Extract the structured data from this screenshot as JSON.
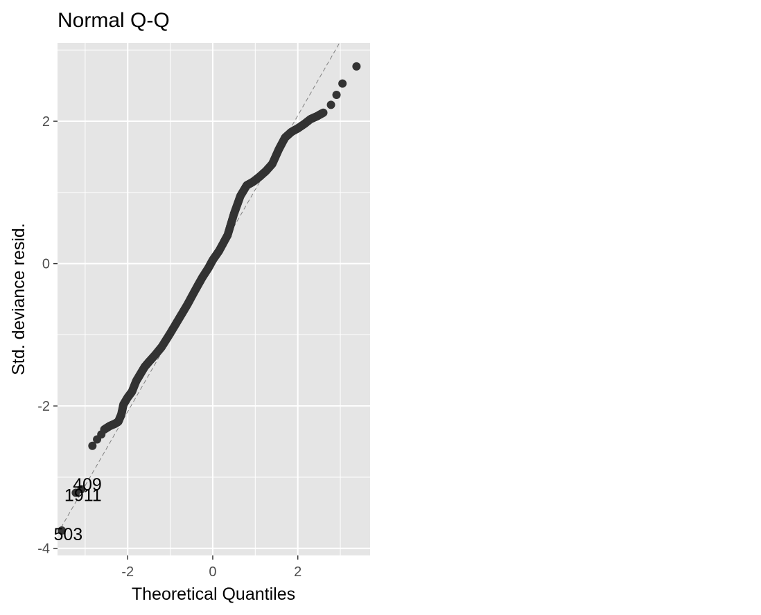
{
  "chart_data": {
    "type": "scatter",
    "title": "Normal Q-Q",
    "xlabel": "Theoretical Quantiles",
    "ylabel": "Std. deviance resid.",
    "xlim": [
      -3.65,
      3.7
    ],
    "ylim": [
      -4.1,
      3.1
    ],
    "x_ticks": [
      -2,
      0,
      2
    ],
    "x_tick_labels": [
      "-2",
      "0",
      "2"
    ],
    "y_ticks": [
      -4,
      -2,
      0,
      2
    ],
    "y_tick_labels": [
      "-4",
      "-2",
      "0",
      "2"
    ],
    "grid": true,
    "panel_background": "#e5e5e5",
    "point_color": "#333333",
    "reference_line": {
      "slope": 1.04,
      "intercept": 0.0,
      "style": "dashed",
      "color": "#808080"
    },
    "series": [
      {
        "points": [
          {
            "x": 3.38,
            "y": 2.77
          },
          {
            "x": 3.05,
            "y": 2.53
          },
          {
            "x": 2.91,
            "y": 2.37
          },
          {
            "x": 2.78,
            "y": 2.23
          },
          {
            "x": -2.83,
            "y": -2.56
          },
          {
            "x": -2.72,
            "y": -2.47
          },
          {
            "x": -2.62,
            "y": -2.4
          },
          {
            "x": -3.09,
            "y": -3.17
          },
          {
            "x": -3.22,
            "y": -3.22
          },
          {
            "x": -3.55,
            "y": -3.75
          }
        ],
        "curve": [
          [
            -2.55,
            -2.33
          ],
          [
            -2.42,
            -2.28
          ],
          [
            -2.3,
            -2.25
          ],
          [
            -2.22,
            -2.22
          ],
          [
            -2.15,
            -2.12
          ],
          [
            -2.1,
            -1.98
          ],
          [
            -2.0,
            -1.88
          ],
          [
            -1.9,
            -1.8
          ],
          [
            -1.8,
            -1.65
          ],
          [
            -1.7,
            -1.55
          ],
          [
            -1.6,
            -1.45
          ],
          [
            -1.5,
            -1.38
          ],
          [
            -1.35,
            -1.28
          ],
          [
            -1.2,
            -1.17
          ],
          [
            -1.0,
            -0.98
          ],
          [
            -0.8,
            -0.78
          ],
          [
            -0.6,
            -0.58
          ],
          [
            -0.4,
            -0.36
          ],
          [
            -0.25,
            -0.2
          ],
          [
            -0.1,
            -0.06
          ],
          [
            0.0,
            0.05
          ],
          [
            0.15,
            0.18
          ],
          [
            0.35,
            0.4
          ],
          [
            0.5,
            0.7
          ],
          [
            0.65,
            0.95
          ],
          [
            0.8,
            1.1
          ],
          [
            0.95,
            1.15
          ],
          [
            1.1,
            1.22
          ],
          [
            1.25,
            1.3
          ],
          [
            1.4,
            1.4
          ],
          [
            1.55,
            1.6
          ],
          [
            1.7,
            1.77
          ],
          [
            1.85,
            1.85
          ],
          [
            2.0,
            1.9
          ],
          [
            2.15,
            1.96
          ],
          [
            2.3,
            2.03
          ],
          [
            2.45,
            2.07
          ],
          [
            2.6,
            2.12
          ]
        ]
      }
    ],
    "annotations": [
      {
        "text": "409",
        "x": -2.95,
        "y": -3.1
      },
      {
        "text": "1911",
        "x": -3.05,
        "y": -3.25
      },
      {
        "text": "503",
        "x": -3.4,
        "y": -3.8
      }
    ]
  }
}
